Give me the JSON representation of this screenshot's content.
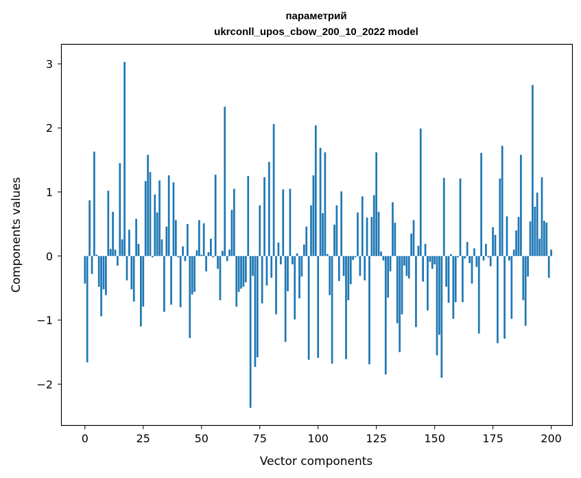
{
  "chart_data": {
    "type": "bar",
    "title": [
      "параметрий",
      "ukrconll_upos_cbow_200_10_2022 model"
    ],
    "xlabel": "Vector components",
    "ylabel": "Components values",
    "xlim": [
      -9.95,
      208.95
    ],
    "ylim": [
      -2.64,
      3.3
    ],
    "xticks": [
      0,
      25,
      50,
      75,
      100,
      125,
      150,
      175,
      200
    ],
    "yticks": [
      -2,
      -1,
      0,
      1,
      2,
      3
    ],
    "ytick_labels": [
      "−2",
      "−1",
      "0",
      "1",
      "2",
      "3"
    ],
    "color": "#1f77b4",
    "grid": false,
    "values": [
      -0.43,
      -1.66,
      0.87,
      -0.28,
      1.63,
      0.02,
      -0.48,
      -0.94,
      -0.52,
      -0.61,
      1.02,
      0.11,
      0.69,
      0.1,
      -0.15,
      1.45,
      0.26,
      3.03,
      -0.38,
      0.41,
      -0.52,
      -0.71,
      0.58,
      0.19,
      -1.1,
      -0.79,
      1.17,
      1.58,
      1.31,
      -0.02,
      0.96,
      0.68,
      1.18,
      0.26,
      -0.87,
      0.46,
      1.26,
      -0.76,
      1.15,
      0.56,
      -0.02,
      -0.8,
      0.15,
      -0.08,
      0.5,
      -1.28,
      -0.6,
      -0.56,
      0.09,
      0.56,
      0.02,
      0.51,
      -0.24,
      0.06,
      0.27,
      -0.02,
      1.27,
      -0.2,
      -0.69,
      0.08,
      2.33,
      -0.08,
      0.1,
      0.72,
      1.05,
      -0.79,
      -0.56,
      -0.51,
      -0.48,
      -0.41,
      1.25,
      -2.37,
      -0.31,
      -1.73,
      -1.58,
      0.79,
      -0.74,
      1.23,
      -0.46,
      1.47,
      -0.34,
      2.06,
      -0.91,
      0.21,
      -0.13,
      1.04,
      -1.34,
      -0.55,
      1.05,
      -0.13,
      -0.99,
      0.04,
      -0.66,
      -0.32,
      0.18,
      0.46,
      -1.62,
      0.79,
      1.26,
      2.04,
      -1.59,
      1.69,
      0.67,
      1.62,
      0.03,
      -0.61,
      -1.68,
      0.49,
      0.79,
      -0.39,
      1.01,
      -0.31,
      -1.61,
      -0.69,
      -0.44,
      -0.06,
      -0.02,
      0.68,
      -0.31,
      0.93,
      -0.38,
      0.6,
      -1.69,
      0.61,
      0.95,
      1.62,
      0.69,
      0.07,
      -0.07,
      -1.85,
      -0.65,
      -0.24,
      0.84,
      0.52,
      -1.05,
      -1.5,
      -0.91,
      -0.15,
      -0.31,
      -0.35,
      0.35,
      0.56,
      -1.11,
      0.16,
      1.99,
      -0.4,
      0.19,
      -0.85,
      -0.09,
      -0.2,
      -0.13,
      -1.55,
      -1.23,
      -1.9,
      1.22,
      -0.48,
      -0.73,
      0.03,
      -0.98,
      -0.72,
      -0.02,
      1.21,
      -0.72,
      -0.04,
      0.22,
      -0.11,
      -0.43,
      0.12,
      -0.17,
      -1.21,
      1.61,
      -0.07,
      0.19,
      -0.02,
      -0.16,
      0.45,
      0.33,
      -1.36,
      1.21,
      1.72,
      -1.29,
      0.62,
      -0.07,
      -0.98,
      0.1,
      0.4,
      0.61,
      1.58,
      -0.69,
      -1.09,
      -0.32,
      0.54,
      2.67,
      0.77,
      0.99,
      0.27,
      1.23,
      0.55,
      0.52,
      -0.34,
      0.1
    ]
  }
}
